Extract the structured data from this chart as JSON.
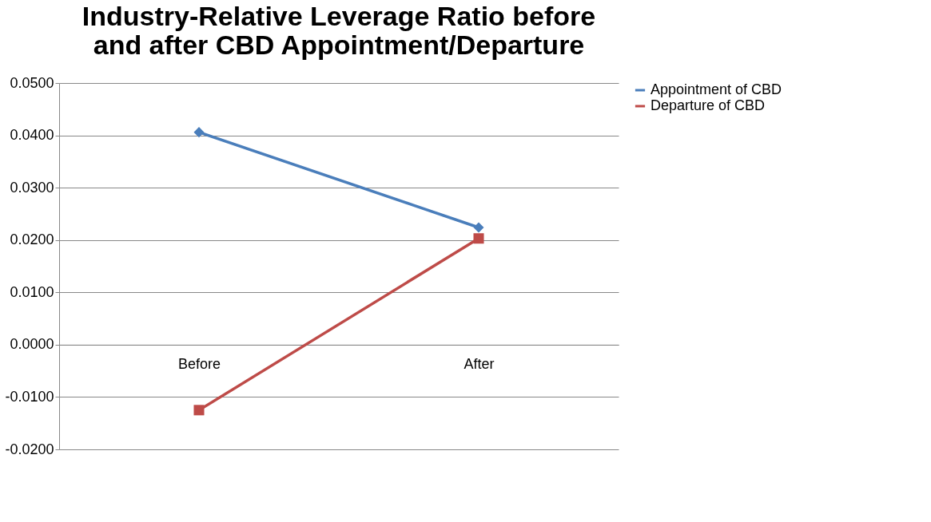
{
  "chart_data": {
    "type": "line",
    "title": "Industry-Relative Leverage Ratio before and after CBD Appointment/Departure",
    "categories": [
      "Before",
      "After"
    ],
    "series": [
      {
        "name": "Appointment of CBD",
        "color": "#4a7ebb",
        "values": [
          0.0406,
          0.0224
        ],
        "marker": "diamond"
      },
      {
        "name": "Departure of CBD",
        "color": "#be4b48",
        "values": [
          -0.0125,
          0.0203
        ],
        "marker": "square"
      }
    ],
    "ylim": [
      -0.02,
      0.05
    ],
    "yticks": [
      {
        "value": -0.02,
        "label": "-0.0200"
      },
      {
        "value": -0.01,
        "label": "-0.0100"
      },
      {
        "value": 0,
        "label": "0.0000"
      },
      {
        "value": 0.01,
        "label": "0.0100"
      },
      {
        "value": 0.02,
        "label": "0.0200"
      },
      {
        "value": 0.03,
        "label": "0.0300"
      },
      {
        "value": 0.04,
        "label": "0.0400"
      },
      {
        "value": 0.05,
        "label": "0.0500"
      }
    ],
    "grid": "y",
    "legend": "right",
    "line_style": "solid"
  }
}
